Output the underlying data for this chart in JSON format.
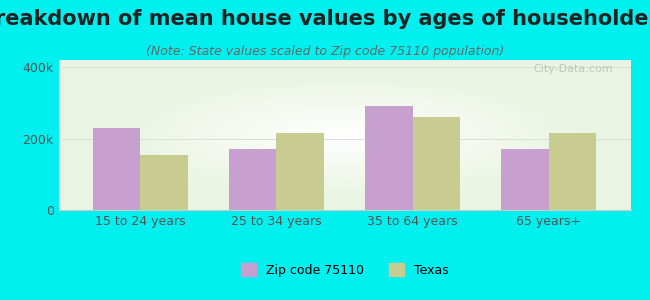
{
  "title": "Breakdown of mean house values by ages of householders",
  "subtitle": "(Note: State values scaled to Zip code 75110 population)",
  "categories": [
    "15 to 24 years",
    "25 to 34 years",
    "35 to 64 years",
    "65 years+"
  ],
  "zip_values": [
    230000,
    170000,
    290000,
    170000
  ],
  "texas_values": [
    155000,
    215000,
    260000,
    215000
  ],
  "zip_color": "#C8A0D0",
  "texas_color": "#C8CC90",
  "background_outer": "#00EFEF",
  "ylim": [
    0,
    420000
  ],
  "ytick_labels": [
    "0",
    "200k",
    "400k"
  ],
  "ytick_values": [
    0,
    200000,
    400000
  ],
  "bar_width": 0.35,
  "legend_zip_label": "Zip code 75110",
  "legend_texas_label": "Texas",
  "watermark": "City-Data.com",
  "title_fontsize": 15,
  "subtitle_fontsize": 9,
  "axis_fontsize": 9,
  "legend_fontsize": 9
}
